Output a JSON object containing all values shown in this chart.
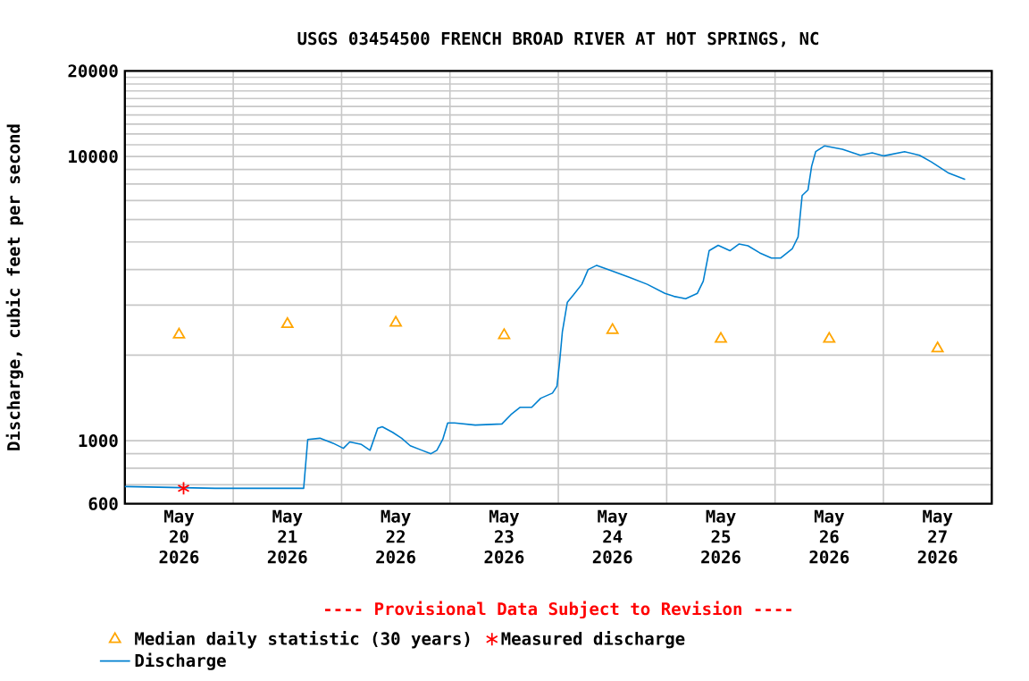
{
  "chart_data": {
    "type": "line",
    "title": "USGS 03454500 FRENCH BROAD RIVER AT HOT SPRINGS, NC",
    "ylabel": "Discharge, cubic feet per second",
    "annotations": [
      "---- Provisional Data Subject to Revision ----"
    ],
    "log": "y",
    "grid": true,
    "legend": "bottom",
    "xlim": [
      "2026-05-20T00:00",
      "2026-05-28T00:00"
    ],
    "xticks": [
      {
        "value": "2026-05-20T00:00",
        "label": null
      },
      {
        "value": "2026-05-21T00:00",
        "label": null
      },
      {
        "value": "2026-05-22T00:00",
        "label": null
      },
      {
        "value": "2026-05-23T00:00",
        "label": null
      },
      {
        "value": "2026-05-24T00:00",
        "label": null
      },
      {
        "value": "2026-05-25T00:00",
        "label": null
      },
      {
        "value": "2026-05-26T00:00",
        "label": null
      },
      {
        "value": "2026-05-27T00:00",
        "label": null
      },
      {
        "value": "2026-05-28T00:00",
        "label": null
      },
      {
        "value": "2026-05-20T12:00",
        "label": "May 20 2026"
      },
      {
        "value": "2026-05-21T12:00",
        "label": "May 21 2026"
      },
      {
        "value": "2026-05-22T12:00",
        "label": "May 22 2026"
      },
      {
        "value": "2026-05-23T12:00",
        "label": "May 23 2026"
      },
      {
        "value": "2026-05-24T12:00",
        "label": "May 24 2026"
      },
      {
        "value": "2026-05-25T12:00",
        "label": "May 25 2026"
      },
      {
        "value": "2026-05-26T12:00",
        "label": "May 26 2026"
      },
      {
        "value": "2026-05-27T12:00",
        "label": "May 27 2026"
      }
    ],
    "ylim": [
      600,
      20000
    ],
    "yticks": [
      600,
      {
        "value": 700,
        "label": null
      },
      {
        "value": 800,
        "label": null
      },
      {
        "value": 900,
        "label": null
      },
      1000,
      {
        "value": 2000,
        "label": null
      },
      {
        "value": 3000,
        "label": null
      },
      {
        "value": 4000,
        "label": null
      },
      {
        "value": 5000,
        "label": null
      },
      {
        "value": 6000,
        "label": null
      },
      {
        "value": 7000,
        "label": null
      },
      {
        "value": 8000,
        "label": null
      },
      {
        "value": 9000,
        "label": null
      },
      10000,
      {
        "value": 11000,
        "label": null
      },
      {
        "value": 12000,
        "label": null
      },
      {
        "value": 13000,
        "label": null
      },
      {
        "value": 14000,
        "label": null
      },
      {
        "value": 15000,
        "label": null
      },
      {
        "value": 16000,
        "label": null
      },
      {
        "value": 17000,
        "label": null
      },
      {
        "value": 18000,
        "label": null
      },
      {
        "value": 19000,
        "label": null
      },
      20000
    ],
    "series": [
      {
        "name": "Median daily statistic (30 years)",
        "type": "scatter",
        "marker": "triangle",
        "color": "#ffa500",
        "x": [
          "2026-05-20T12:00",
          "2026-05-21T12:00",
          "2026-05-22T12:00",
          "2026-05-23T12:00",
          "2026-05-24T12:00",
          "2026-05-25T12:00",
          "2026-05-26T12:00",
          "2026-05-27T12:00"
        ],
        "values": [
          2360,
          2570,
          2600,
          2350,
          2450,
          2280,
          2280,
          2110
        ]
      },
      {
        "name": "Measured discharge",
        "type": "scatter",
        "marker": "cross",
        "color": "#ff0000",
        "x": [
          "2026-05-20T13:00"
        ],
        "values": [
          680
        ]
      },
      {
        "name": "Discharge",
        "marker": "none",
        "line_style": "solid",
        "color": "#0080d0",
        "x": [
          "2026-05-20T00:00",
          "2026-05-20T20:00",
          "2026-05-21T15:36",
          "2026-05-21T16:30",
          "2026-05-21T19:12",
          "2026-05-21T22:06",
          "2026-05-22T00:24",
          "2026-05-22T01:48",
          "2026-05-22T04:24",
          "2026-05-22T06:18",
          "2026-05-22T08:00",
          "2026-05-22T09:00",
          "2026-05-22T11:18",
          "2026-05-22T13:18",
          "2026-05-22T15:12",
          "2026-05-22T17:48",
          "2026-05-22T19:48",
          "2026-05-22T21:06",
          "2026-05-22T22:24",
          "2026-05-22T23:30",
          "2026-05-23T01:00",
          "2026-05-23T05:36",
          "2026-05-23T11:30",
          "2026-05-23T13:30",
          "2026-05-23T15:30",
          "2026-05-23T18:06",
          "2026-05-23T20:06",
          "2026-05-23T22:42",
          "2026-05-23T23:42",
          "2026-05-24T00:18",
          "2026-05-24T00:54",
          "2026-05-24T02:00",
          "2026-05-24T03:18",
          "2026-05-24T05:12",
          "2026-05-24T06:36",
          "2026-05-24T08:30",
          "2026-05-24T11:48",
          "2026-05-24T15:42",
          "2026-05-24T19:42",
          "2026-05-24T23:36",
          "2026-05-25T01:36",
          "2026-05-25T04:12",
          "2026-05-25T06:48",
          "2026-05-25T08:06",
          "2026-05-25T09:24",
          "2026-05-25T11:24",
          "2026-05-25T14:00",
          "2026-05-25T16:00",
          "2026-05-25T18:00",
          "2026-05-25T20:36",
          "2026-05-25T23:12",
          "2026-05-26T01:12",
          "2026-05-26T03:48",
          "2026-05-26T05:06",
          "2026-05-26T06:00",
          "2026-05-26T07:18",
          "2026-05-26T08:06",
          "2026-05-26T09:00",
          "2026-05-26T11:00",
          "2026-05-26T14:54",
          "2026-05-26T18:54",
          "2026-05-26T21:30",
          "2026-05-27T00:06",
          "2026-05-27T04:42",
          "2026-05-27T08:00",
          "2026-05-27T10:36",
          "2026-05-27T14:30",
          "2026-05-27T18:06"
        ],
        "values": [
          690,
          680,
          680,
          1010,
          1020,
          980,
          940,
          990,
          970,
          925,
          1105,
          1120,
          1070,
          1020,
          960,
          925,
          900,
          925,
          1010,
          1155,
          1155,
          1135,
          1145,
          1235,
          1310,
          1310,
          1410,
          1470,
          1555,
          1900,
          2420,
          3070,
          3250,
          3550,
          4000,
          4140,
          3960,
          3760,
          3550,
          3300,
          3220,
          3160,
          3300,
          3640,
          4660,
          4870,
          4660,
          4920,
          4850,
          4580,
          4390,
          4390,
          4730,
          5210,
          7290,
          7630,
          9230,
          10400,
          10900,
          10600,
          10100,
          10300,
          10050,
          10400,
          10100,
          9570,
          8730,
          8300
        ]
      }
    ]
  }
}
